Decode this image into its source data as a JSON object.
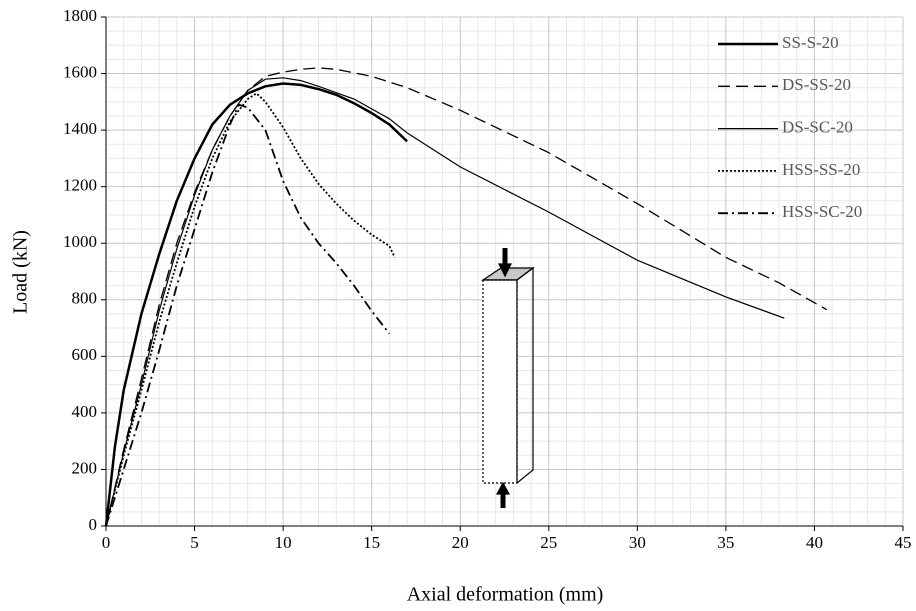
{
  "chart_data": {
    "type": "line",
    "xlabel": "Axial deformation (mm)",
    "ylabel": "Load (kN)",
    "xlim": [
      0,
      45
    ],
    "xticks": [
      0,
      5,
      10,
      15,
      20,
      25,
      30,
      35,
      40,
      45
    ],
    "ylim": [
      0,
      1800
    ],
    "yticks": [
      0,
      200,
      400,
      600,
      800,
      1000,
      1200,
      1400,
      1600,
      1800
    ],
    "grid": true,
    "minor_grid": true,
    "legend": "upper right",
    "series": [
      {
        "name": "SS-S-20",
        "color": "#000000",
        "style": "solid",
        "linewidth": 2.5,
        "x": [
          0,
          0.5,
          1,
          2,
          3,
          4,
          5,
          6,
          7,
          8,
          9,
          10,
          11,
          12,
          13,
          14,
          15,
          16,
          17
        ],
        "values": [
          0,
          280,
          480,
          750,
          960,
          1150,
          1300,
          1420,
          1490,
          1530,
          1555,
          1565,
          1560,
          1545,
          1525,
          1495,
          1460,
          1420,
          1360
        ]
      },
      {
        "name": "DS-SS-20",
        "color": "#000000",
        "style": "dashed",
        "linewidth": 1.3,
        "x": [
          0,
          1,
          2,
          3,
          4,
          5,
          6,
          7,
          8,
          9,
          10,
          11,
          12,
          13,
          15,
          17,
          20,
          25,
          30,
          35,
          38,
          40.7
        ],
        "values": [
          0,
          270,
          520,
          780,
          1000,
          1180,
          1330,
          1450,
          1540,
          1590,
          1605,
          1615,
          1620,
          1615,
          1590,
          1550,
          1470,
          1320,
          1140,
          950,
          860,
          765
        ]
      },
      {
        "name": "DS-SC-20",
        "color": "#000000",
        "style": "solid",
        "linewidth": 1.2,
        "x": [
          0,
          1,
          2,
          3,
          4,
          5,
          6,
          7,
          8,
          9,
          10,
          11,
          12,
          14,
          16,
          17,
          20,
          25,
          30,
          35,
          38.3
        ],
        "values": [
          0,
          260,
          500,
          760,
          980,
          1170,
          1330,
          1450,
          1540,
          1580,
          1585,
          1575,
          1555,
          1510,
          1440,
          1390,
          1270,
          1110,
          940,
          810,
          735
        ]
      },
      {
        "name": "HSS-SS-20",
        "color": "#000000",
        "style": "dotted",
        "linewidth": 1.8,
        "x": [
          0,
          1,
          2,
          3,
          4,
          5,
          6,
          7,
          8,
          8.5,
          9,
          10,
          11,
          12,
          13,
          14,
          15,
          16,
          16.3
        ],
        "values": [
          0,
          250,
          480,
          720,
          930,
          1130,
          1300,
          1430,
          1510,
          1530,
          1500,
          1410,
          1300,
          1210,
          1140,
          1080,
          1030,
          990,
          950
        ]
      },
      {
        "name": "HSS-SC-20",
        "color": "#000000",
        "style": "dashdot",
        "linewidth": 1.8,
        "x": [
          0,
          1,
          2,
          3,
          4,
          5,
          6,
          7,
          7.5,
          8,
          9,
          10,
          11,
          12,
          13,
          14,
          15,
          16
        ],
        "values": [
          0,
          200,
          400,
          620,
          850,
          1050,
          1250,
          1420,
          1490,
          1480,
          1400,
          1220,
          1090,
          1000,
          930,
          850,
          760,
          680
        ]
      }
    ]
  }
}
